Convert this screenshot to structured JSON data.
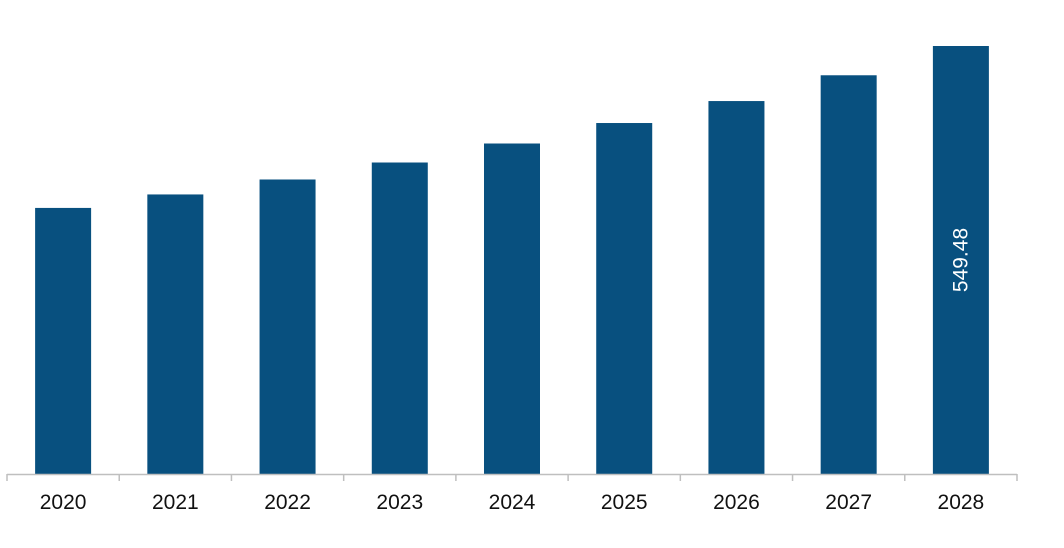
{
  "chart_data": {
    "type": "bar",
    "title": "",
    "xlabel": "",
    "ylabel": "",
    "categories": [
      "2020",
      "2021",
      "2022",
      "2023",
      "2024",
      "2025",
      "2026",
      "2027",
      "2028"
    ],
    "values": [
      341.6,
      358.9,
      378.1,
      399.9,
      424.3,
      450.6,
      478.8,
      511.9,
      549.48
    ],
    "data_labels": [
      "",
      "",
      "",
      "",
      "",
      "",
      "",
      "",
      "549.48"
    ],
    "ylim": [
      0,
      549.48
    ],
    "grid": false,
    "legend": "none",
    "bar_color": "#08507f",
    "axis_color": "#bfbfbf"
  }
}
